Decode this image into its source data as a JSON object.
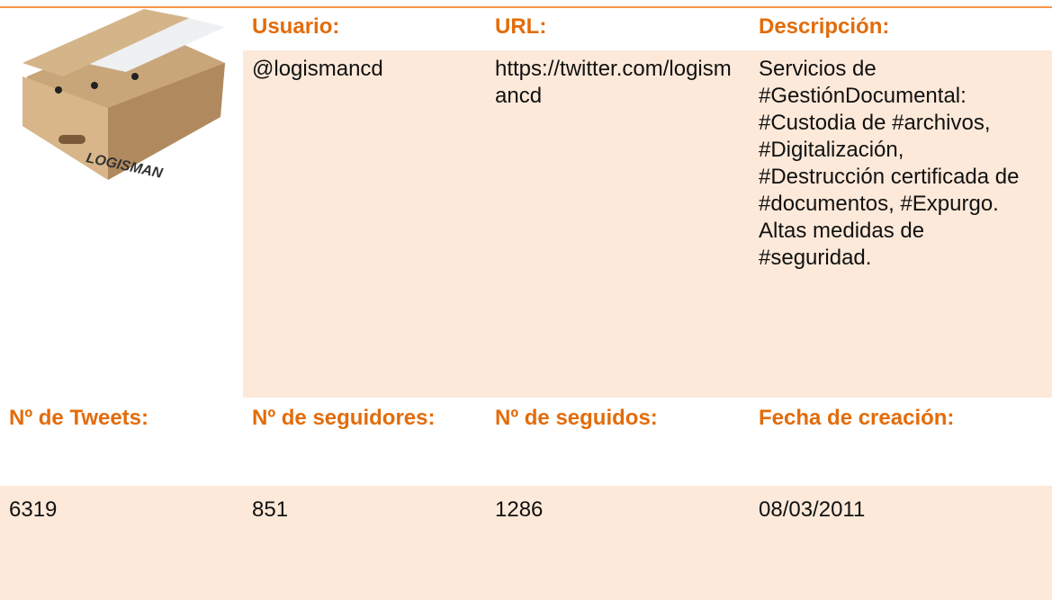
{
  "image": {
    "brand": "LOGISMAN"
  },
  "table": {
    "header1": [
      "Usuario:",
      "URL:",
      "Descripción:"
    ],
    "row1": [
      "@logismancd",
      "https://twitter.com/logismancd",
      "Servicios de #GestiónDocumental: #Custodia de #archivos, #Digitalización, #Destrucción certificada de #documentos, #Expurgo.  Altas medidas de #seguridad."
    ],
    "header2": [
      "Nº de Tweets:",
      "Nº de seguidores:",
      "Nº de seguidos:",
      "Fecha de creación:"
    ],
    "row2": [
      "6319",
      "851",
      "1286",
      "08/03/2011"
    ]
  }
}
